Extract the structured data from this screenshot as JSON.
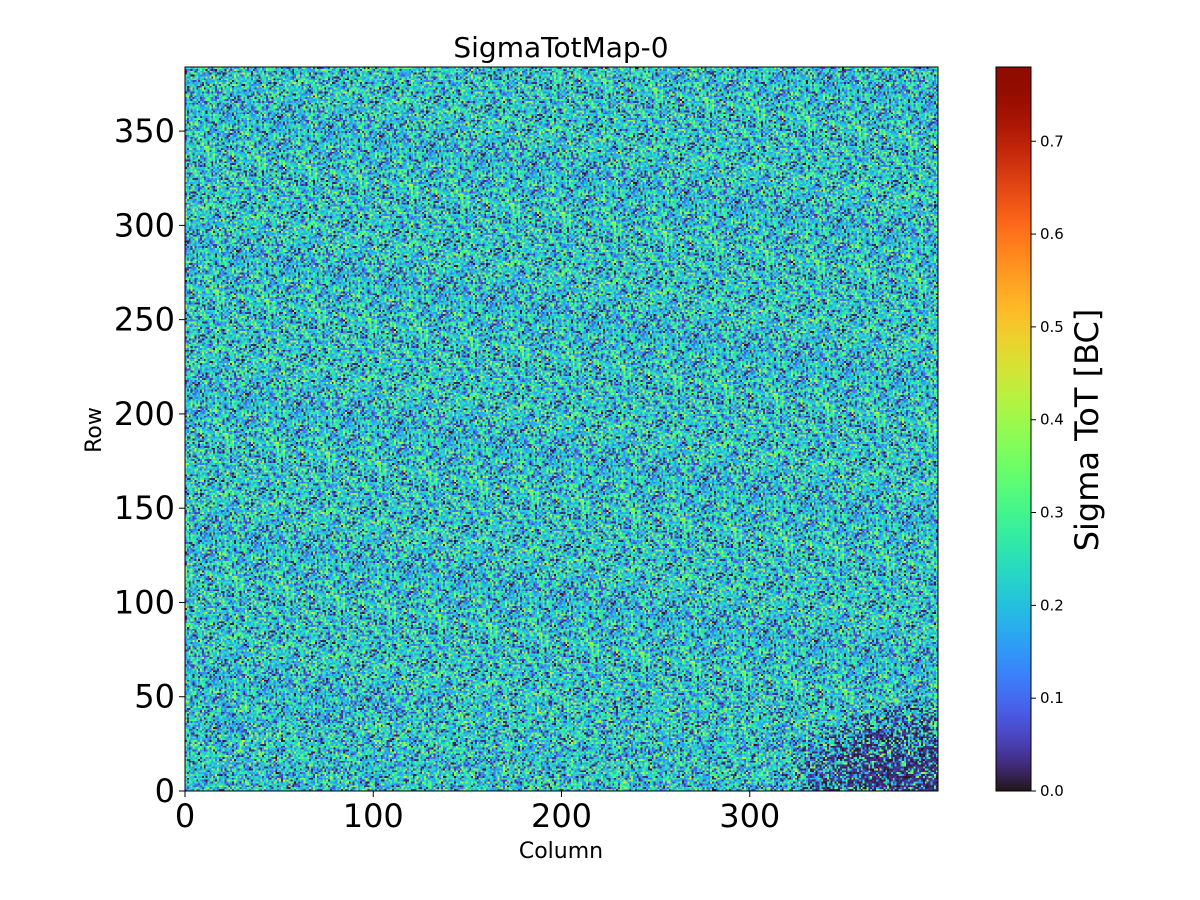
{
  "chart_data": {
    "type": "heatmap",
    "title": "SigmaTotMap-0",
    "xlabel": "Column",
    "ylabel": "Row",
    "xlim": [
      0,
      400
    ],
    "ylim": [
      0,
      384
    ],
    "grid_size": {
      "columns": 400,
      "rows": 384
    },
    "xticks": [
      0,
      100,
      200,
      300
    ],
    "xtick_labels": [
      "0",
      "100",
      "200",
      "300"
    ],
    "yticks": [
      0,
      50,
      100,
      150,
      200,
      250,
      300,
      350
    ],
    "ytick_labels": [
      "0",
      "50",
      "100",
      "150",
      "200",
      "250",
      "300",
      "350"
    ],
    "colormap": "turbo",
    "colorbar": {
      "label": "Sigma ToT [BC]",
      "range": [
        0.0,
        0.78
      ],
      "ticks": [
        0.0,
        0.1,
        0.2,
        0.3,
        0.4,
        0.5,
        0.6,
        0.7
      ],
      "tick_labels": [
        "0.0",
        "0.1",
        "0.2",
        "0.3",
        "0.4",
        "0.5",
        "0.6",
        "0.7"
      ]
    },
    "value_distribution": {
      "description": "noisy per-pixel values, mostly 0.0 to 0.45 BC, mean about 0.25",
      "low_value_cluster": "bottom-right corner (Column 320-400, Row 0-45)"
    }
  }
}
